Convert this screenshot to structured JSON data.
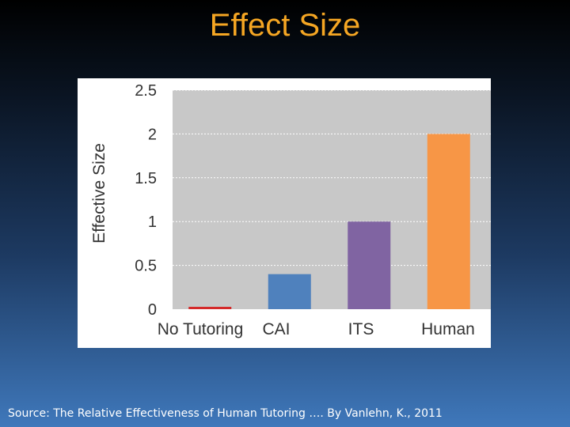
{
  "slide": {
    "title": "Effect Size",
    "source": "Source: The Relative Effectiveness of Human Tutoring …. By Vanlehn, K., 2011"
  },
  "chart_data": {
    "type": "bar",
    "title": "",
    "xlabel": "",
    "ylabel": "Effective Size",
    "categories": [
      "No Tutoring",
      "CAI",
      "ITS",
      "Human"
    ],
    "values": [
      0,
      0.4,
      1.0,
      2.0
    ],
    "colors": [
      "#d42a2a",
      "#4f81bd",
      "#8064a2",
      "#f79646"
    ],
    "ylim": [
      0,
      2.5
    ],
    "yticks": [
      "0",
      "0.5",
      "1",
      "1.5",
      "2",
      "2.5"
    ],
    "grid": true,
    "plot_background": "#c8c8c8"
  }
}
